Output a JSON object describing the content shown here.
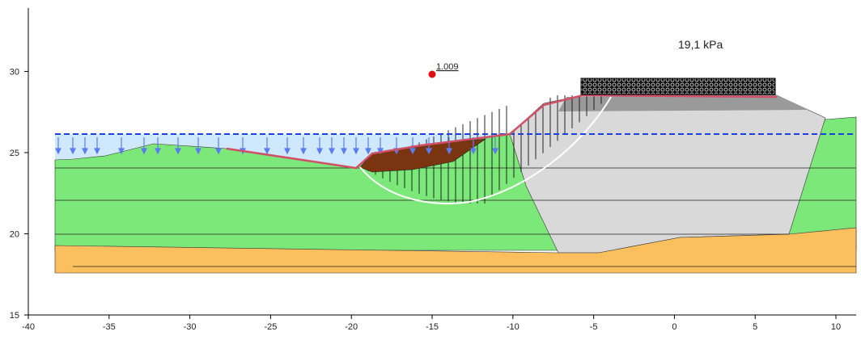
{
  "load_label": "19,1 kPa",
  "factor_of_safety": "1.009",
  "x_axis": {
    "lim": [
      -40,
      11
    ],
    "ticks": [
      -40,
      -35,
      -30,
      -25,
      -20,
      -15,
      -10,
      -5,
      0,
      5,
      10
    ]
  },
  "y_axis": {
    "lim": [
      15,
      34
    ],
    "ticks": [
      15,
      20,
      25,
      30
    ]
  }
}
